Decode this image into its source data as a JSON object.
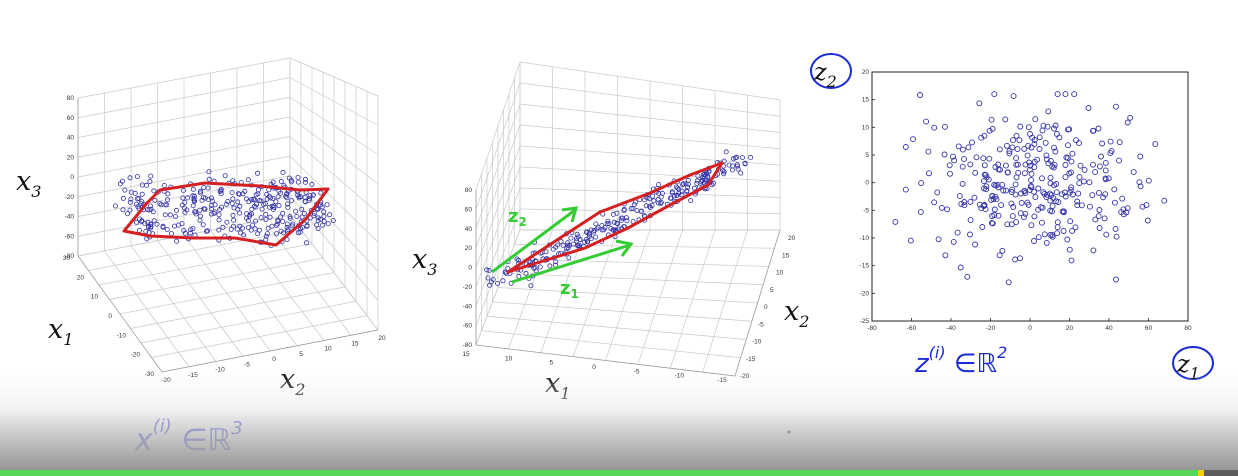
{
  "colors": {
    "points": "#3333aa",
    "red_outline": "#d42020",
    "green_ink": "#33cc33",
    "blue_ink": "#1a2bd6",
    "progress": "#56d656"
  },
  "progress": {
    "played_fraction": 0.97
  },
  "chart_data": [
    {
      "type": "scatter",
      "subtype": "3d",
      "axis_labels": {
        "x": "x2",
        "y": "x1",
        "z": "x3"
      },
      "z_ticks": [
        "80",
        "60",
        "40",
        "20",
        "0",
        "-20",
        "-40",
        "-60",
        "-80"
      ],
      "x_ticks": [
        "-20",
        "-15",
        "-10",
        "-5",
        "0",
        "5",
        "10",
        "15",
        "20"
      ],
      "y_ticks": [
        "30",
        "20",
        "10",
        "0",
        "-10",
        "-20",
        "-30"
      ],
      "annotation": "x(i) ∈ ℝ3",
      "grid": true,
      "point_count": 340
    },
    {
      "type": "scatter",
      "subtype": "3d",
      "axis_labels": {
        "x": "x1",
        "y": "x2",
        "z": "x3"
      },
      "z_ticks": [
        "80",
        "60",
        "40",
        "20",
        "0",
        "-20",
        "-40",
        "-60",
        "-80"
      ],
      "x_ticks": [
        "15",
        "10",
        "5",
        "0",
        "-5",
        "-10",
        "-15"
      ],
      "y_ticks": [
        "20",
        "15",
        "10",
        "5",
        "0",
        "-5",
        "-10",
        "-15",
        "-20"
      ],
      "annotations": [
        "z2",
        "z1"
      ],
      "grid": true,
      "point_count": 260
    },
    {
      "type": "scatter",
      "axis_labels": {
        "x": "z1",
        "y": "z2"
      },
      "xlim": [
        -80,
        80
      ],
      "ylim": [
        -25,
        20
      ],
      "x_ticks": [
        -80,
        -60,
        -40,
        -20,
        0,
        20,
        40,
        60,
        80
      ],
      "y_ticks": [
        -25,
        -20,
        -15,
        -10,
        -5,
        0,
        5,
        10,
        15,
        20
      ],
      "annotation": "z(i) ∈ ℝ2",
      "grid": false,
      "point_count": 320
    }
  ]
}
